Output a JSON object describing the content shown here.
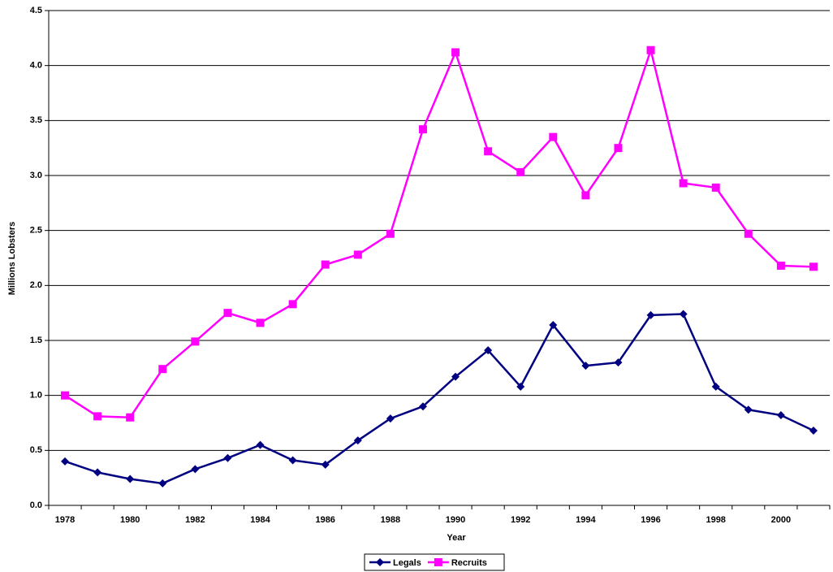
{
  "chart_data": {
    "type": "line",
    "x_label": "Year",
    "y_label": "Millions Lobsters",
    "categories": [
      "1978",
      null,
      "1980",
      null,
      "1982",
      null,
      "1984",
      null,
      "1986",
      null,
      "1988",
      null,
      "1990",
      null,
      "1992",
      null,
      "1994",
      null,
      "1996",
      null,
      "1998",
      null,
      "2000",
      null
    ],
    "series": [
      {
        "name": "Legals",
        "color": "#000080",
        "marker": "diamond",
        "values": [
          0.4,
          0.3,
          0.24,
          0.2,
          0.33,
          0.43,
          0.55,
          0.41,
          0.37,
          0.59,
          0.79,
          0.9,
          1.17,
          1.41,
          1.08,
          1.64,
          1.27,
          1.3,
          1.73,
          1.74,
          1.08,
          0.87,
          0.82,
          0.68
        ]
      },
      {
        "name": "Recruits",
        "color": "#ff00ff",
        "marker": "square",
        "values": [
          1.0,
          0.81,
          0.8,
          1.24,
          1.49,
          1.75,
          1.66,
          1.83,
          2.19,
          2.28,
          2.47,
          3.42,
          4.12,
          3.22,
          3.03,
          3.35,
          2.82,
          3.25,
          4.14,
          2.93,
          2.89,
          2.47,
          2.18,
          2.17
        ]
      }
    ],
    "ylim": [
      0,
      4.5
    ],
    "yticks": [
      {
        "value": 0,
        "label": "0.0"
      },
      {
        "value": 0.5,
        "label": "0.5"
      },
      {
        "value": 1,
        "label": "1.0"
      },
      {
        "value": 1.5,
        "label": "1.5"
      },
      {
        "value": 2,
        "label": "2.0"
      },
      {
        "value": 2.5,
        "label": "2.5"
      },
      {
        "value": 3,
        "label": "3.0"
      },
      {
        "value": 3.5,
        "label": "3.5"
      },
      {
        "value": 4,
        "label": "4.0"
      },
      {
        "value": 4.5,
        "label": "4.5"
      }
    ],
    "grid": true,
    "legend": "bottom"
  }
}
